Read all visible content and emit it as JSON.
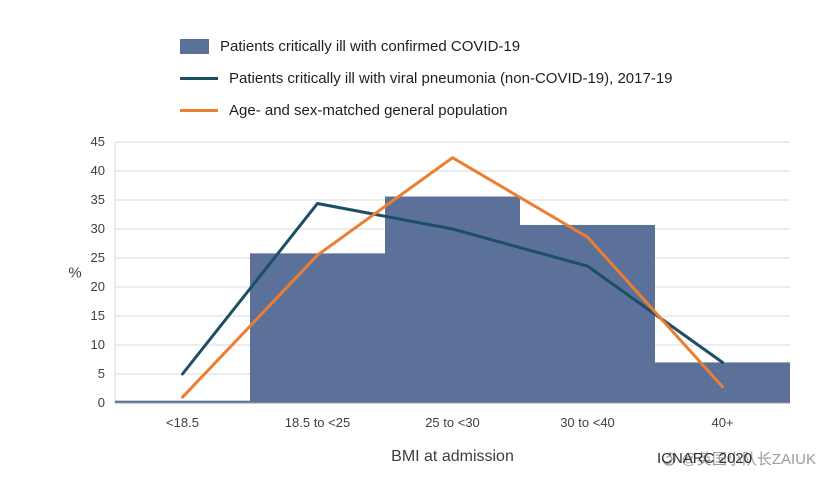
{
  "chart_data": {
    "type": "combo",
    "subtype": [
      "bar",
      "line",
      "line"
    ],
    "categories": [
      "<18.5",
      "18.5 to <25",
      "25 to <30",
      "30 to <40",
      "40+"
    ],
    "bar_series": {
      "name": "Patients critically ill with confirmed COVID-19",
      "color": "#5b7199",
      "values": [
        0.4,
        25.8,
        35.6,
        30.7,
        7.0
      ]
    },
    "line_series": [
      {
        "name": "Patients critically ill with viral pneumonia (non-COVID-19), 2017-19",
        "color": "#1c4f66",
        "values": [
          5.0,
          34.4,
          30.0,
          23.6,
          7.0
        ]
      },
      {
        "name": "Age- and sex-matched general population",
        "color": "#ed7d31",
        "values": [
          1.0,
          25.5,
          42.3,
          28.6,
          2.8
        ]
      }
    ],
    "xlabel": "BMI at admission",
    "ylabel": "%",
    "ylim": [
      0,
      45
    ],
    "yticks": [
      0,
      5,
      10,
      15,
      20,
      25,
      30,
      35,
      40,
      45
    ],
    "grid": true,
    "legend_position": "top-left",
    "grid_color": "#d9d9d9",
    "baseline_color": "#9a9a9a"
  },
  "watermark": {
    "handle": "@英国小队长ZAIUK",
    "source": "ICNARC 2020"
  }
}
